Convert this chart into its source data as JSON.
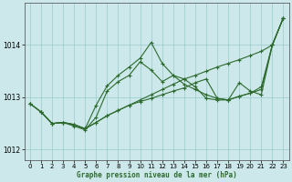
{
  "xlabel": "Graphe pression niveau de la mer (hPa)",
  "background_color": "#cce8ea",
  "grid_color": "#9fcfcf",
  "line_color": "#2d6a2d",
  "ylim": [
    1011.8,
    1014.8
  ],
  "xlim": [
    -0.5,
    23.5
  ],
  "yticks": [
    1012,
    1013,
    1014
  ],
  "xticks": [
    0,
    1,
    2,
    3,
    4,
    5,
    6,
    7,
    8,
    9,
    10,
    11,
    12,
    13,
    14,
    15,
    16,
    17,
    18,
    19,
    20,
    21,
    22,
    23
  ],
  "series": [
    {
      "x": [
        0,
        1,
        2,
        3,
        4,
        5,
        6,
        7,
        8,
        9,
        10,
        11,
        12,
        13,
        14,
        15,
        16,
        17,
        18,
        19,
        20,
        21,
        22,
        23
      ],
      "y": [
        1012.88,
        1012.72,
        1012.5,
        1012.52,
        1012.48,
        1012.4,
        1012.52,
        1012.65,
        1012.75,
        1012.85,
        1012.92,
        1012.98,
        1013.05,
        1013.12,
        1013.18,
        1013.28,
        1013.35,
        1012.98,
        1012.95,
        1013.02,
        1013.08,
        1013.15,
        1014.0,
        1014.52
      ]
    },
    {
      "x": [
        0,
        1,
        2,
        3,
        4,
        5,
        6,
        7,
        8,
        9,
        10,
        11,
        12,
        13,
        14,
        15,
        16,
        17,
        18,
        19,
        20,
        21,
        22,
        23
      ],
      "y": [
        1012.88,
        1012.72,
        1012.5,
        1012.52,
        1012.48,
        1012.4,
        1012.85,
        1013.22,
        1013.42,
        1013.58,
        1013.75,
        1014.05,
        1013.65,
        1013.42,
        1013.25,
        1013.15,
        1013.05,
        1012.98,
        1012.95,
        1013.28,
        1013.12,
        1013.05,
        1014.0,
        1014.52
      ]
    },
    {
      "x": [
        0,
        1,
        2,
        3,
        4,
        5,
        6,
        7,
        8,
        9,
        10,
        11,
        12,
        13,
        14,
        15,
        16,
        17,
        18,
        19,
        20,
        21,
        22,
        23
      ],
      "y": [
        1012.88,
        1012.72,
        1012.5,
        1012.52,
        1012.45,
        1012.38,
        1012.62,
        1013.12,
        1013.3,
        1013.42,
        1013.68,
        1013.52,
        1013.3,
        1013.42,
        1013.35,
        1013.2,
        1012.98,
        1012.95,
        1012.95,
        1013.02,
        1013.08,
        1013.2,
        1014.0,
        1014.52
      ]
    },
    {
      "x": [
        1,
        2,
        3,
        4,
        5,
        6,
        7,
        8,
        9,
        10,
        11,
        12,
        13,
        14,
        15,
        16,
        17,
        18,
        19,
        20,
        21,
        22,
        23
      ],
      "y": [
        1012.72,
        1012.5,
        1012.52,
        1012.48,
        1012.4,
        1012.52,
        1012.65,
        1012.75,
        1012.85,
        1012.95,
        1013.05,
        1013.15,
        1013.25,
        1013.35,
        1013.42,
        1013.5,
        1013.58,
        1013.65,
        1013.72,
        1013.8,
        1013.88,
        1014.0,
        1014.52
      ]
    }
  ]
}
